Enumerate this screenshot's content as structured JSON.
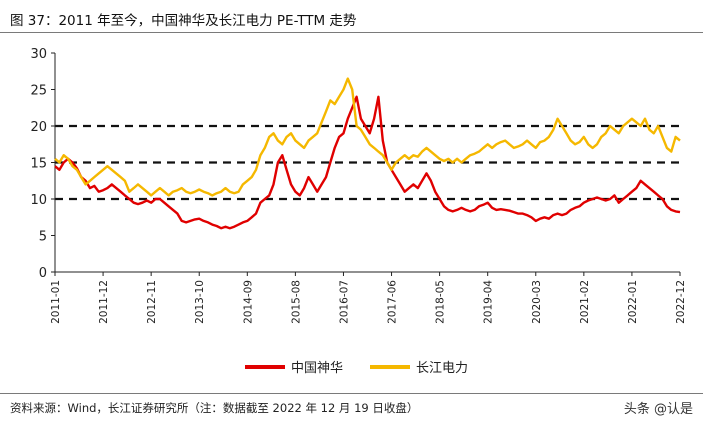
{
  "header": {
    "title": "图 37：2011 年至今，中国神华及长江电力 PE-TTM 走势"
  },
  "footer": {
    "source": "资料来源：Wind，长江证券研究所（注：数据截至 2022 年 12 月 19 日收盘）",
    "watermark": "头条 @认是"
  },
  "chart_data": {
    "type": "line",
    "title": "",
    "xlabel": "",
    "ylabel": "",
    "ylim": [
      0,
      30
    ],
    "yticks": [
      0,
      5,
      10,
      15,
      20,
      25,
      30
    ],
    "x_tick_labels": [
      "2011-01",
      "2011-12",
      "2012-11",
      "2013-10",
      "2014-09",
      "2015-08",
      "2016-07",
      "2017-06",
      "2018-05",
      "2019-04",
      "2020-03",
      "2021-02",
      "2022-01",
      "2022-12"
    ],
    "reference_lines": [
      10,
      15,
      20
    ],
    "legend_position": "bottom",
    "colors": {
      "中国神华": "#e00000",
      "长江电力": "#f5b800"
    },
    "series": [
      {
        "name": "中国神华",
        "points": [
          [
            "2011-01",
            14.5
          ],
          [
            "2011-02",
            14.0
          ],
          [
            "2011-03",
            15.0
          ],
          [
            "2011-04",
            15.5
          ],
          [
            "2011-05",
            15.0
          ],
          [
            "2011-06",
            14.2
          ],
          [
            "2011-07",
            13.0
          ],
          [
            "2011-08",
            12.5
          ],
          [
            "2011-09",
            11.5
          ],
          [
            "2011-10",
            11.8
          ],
          [
            "2011-11",
            11.0
          ],
          [
            "2011-12",
            11.2
          ],
          [
            "2012-01",
            11.5
          ],
          [
            "2012-02",
            12.0
          ],
          [
            "2012-03",
            11.5
          ],
          [
            "2012-04",
            11.0
          ],
          [
            "2012-05",
            10.5
          ],
          [
            "2012-06",
            10.0
          ],
          [
            "2012-07",
            9.5
          ],
          [
            "2012-08",
            9.3
          ],
          [
            "2012-09",
            9.5
          ],
          [
            "2012-10",
            9.8
          ],
          [
            "2012-11",
            9.5
          ],
          [
            "2012-12",
            10.0
          ],
          [
            "2013-01",
            10.0
          ],
          [
            "2013-02",
            9.5
          ],
          [
            "2013-03",
            9.0
          ],
          [
            "2013-04",
            8.5
          ],
          [
            "2013-05",
            8.0
          ],
          [
            "2013-06",
            7.0
          ],
          [
            "2013-07",
            6.8
          ],
          [
            "2013-08",
            7.0
          ],
          [
            "2013-09",
            7.2
          ],
          [
            "2013-10",
            7.3
          ],
          [
            "2013-11",
            7.0
          ],
          [
            "2013-12",
            6.8
          ],
          [
            "2014-01",
            6.5
          ],
          [
            "2014-02",
            6.3
          ],
          [
            "2014-03",
            6.0
          ],
          [
            "2014-04",
            6.2
          ],
          [
            "2014-05",
            6.0
          ],
          [
            "2014-06",
            6.2
          ],
          [
            "2014-07",
            6.5
          ],
          [
            "2014-08",
            6.8
          ],
          [
            "2014-09",
            7.0
          ],
          [
            "2014-10",
            7.5
          ],
          [
            "2014-11",
            8.0
          ],
          [
            "2014-12",
            9.5
          ],
          [
            "2015-01",
            10.0
          ],
          [
            "2015-02",
            10.5
          ],
          [
            "2015-03",
            12.0
          ],
          [
            "2015-04",
            15.0
          ],
          [
            "2015-05",
            16.0
          ],
          [
            "2015-06",
            14.0
          ],
          [
            "2015-07",
            12.0
          ],
          [
            "2015-08",
            11.0
          ],
          [
            "2015-09",
            10.5
          ],
          [
            "2015-10",
            11.5
          ],
          [
            "2015-11",
            13.0
          ],
          [
            "2015-12",
            12.0
          ],
          [
            "2016-01",
            11.0
          ],
          [
            "2016-02",
            12.0
          ],
          [
            "2016-03",
            13.0
          ],
          [
            "2016-04",
            15.0
          ],
          [
            "2016-05",
            17.0
          ],
          [
            "2016-06",
            18.5
          ],
          [
            "2016-07",
            19.0
          ],
          [
            "2016-08",
            21.0
          ],
          [
            "2016-09",
            22.5
          ],
          [
            "2016-10",
            24.0
          ],
          [
            "2016-11",
            21.0
          ],
          [
            "2016-12",
            20.0
          ],
          [
            "2017-01",
            19.0
          ],
          [
            "2017-02",
            21.0
          ],
          [
            "2017-03",
            24.0
          ],
          [
            "2017-04",
            18.0
          ],
          [
            "2017-05",
            15.0
          ],
          [
            "2017-06",
            14.0
          ],
          [
            "2017-07",
            13.0
          ],
          [
            "2017-08",
            12.0
          ],
          [
            "2017-09",
            11.0
          ],
          [
            "2017-10",
            11.5
          ],
          [
            "2017-11",
            12.0
          ],
          [
            "2017-12",
            11.5
          ],
          [
            "2018-01",
            12.5
          ],
          [
            "2018-02",
            13.5
          ],
          [
            "2018-03",
            12.5
          ],
          [
            "2018-04",
            11.0
          ],
          [
            "2018-05",
            10.0
          ],
          [
            "2018-06",
            9.0
          ],
          [
            "2018-07",
            8.5
          ],
          [
            "2018-08",
            8.3
          ],
          [
            "2018-09",
            8.5
          ],
          [
            "2018-10",
            8.8
          ],
          [
            "2018-11",
            8.5
          ],
          [
            "2018-12",
            8.3
          ],
          [
            "2019-01",
            8.5
          ],
          [
            "2019-02",
            9.0
          ],
          [
            "2019-03",
            9.2
          ],
          [
            "2019-04",
            9.5
          ],
          [
            "2019-05",
            8.8
          ],
          [
            "2019-06",
            8.5
          ],
          [
            "2019-07",
            8.6
          ],
          [
            "2019-08",
            8.5
          ],
          [
            "2019-09",
            8.4
          ],
          [
            "2019-10",
            8.2
          ],
          [
            "2019-11",
            8.0
          ],
          [
            "2019-12",
            8.0
          ],
          [
            "2020-01",
            7.8
          ],
          [
            "2020-02",
            7.5
          ],
          [
            "2020-03",
            7.0
          ],
          [
            "2020-04",
            7.3
          ],
          [
            "2020-05",
            7.5
          ],
          [
            "2020-06",
            7.3
          ],
          [
            "2020-07",
            7.8
          ],
          [
            "2020-08",
            8.0
          ],
          [
            "2020-09",
            7.8
          ],
          [
            "2020-10",
            8.0
          ],
          [
            "2020-11",
            8.5
          ],
          [
            "2020-12",
            8.8
          ],
          [
            "2021-01",
            9.0
          ],
          [
            "2021-02",
            9.5
          ],
          [
            "2021-03",
            9.8
          ],
          [
            "2021-04",
            10.0
          ],
          [
            "2021-05",
            10.2
          ],
          [
            "2021-06",
            10.0
          ],
          [
            "2021-07",
            9.8
          ],
          [
            "2021-08",
            10.0
          ],
          [
            "2021-09",
            10.5
          ],
          [
            "2021-10",
            9.5
          ],
          [
            "2021-11",
            10.0
          ],
          [
            "2021-12",
            10.5
          ],
          [
            "2022-01",
            11.0
          ],
          [
            "2022-02",
            11.5
          ],
          [
            "2022-03",
            12.5
          ],
          [
            "2022-04",
            12.0
          ],
          [
            "2022-05",
            11.5
          ],
          [
            "2022-06",
            11.0
          ],
          [
            "2022-07",
            10.5
          ],
          [
            "2022-08",
            10.0
          ],
          [
            "2022-09",
            9.0
          ],
          [
            "2022-10",
            8.5
          ],
          [
            "2022-11",
            8.3
          ],
          [
            "2022-12",
            8.2
          ]
        ]
      },
      {
        "name": "长江电力",
        "points": [
          [
            "2011-01",
            15.5
          ],
          [
            "2011-02",
            15.0
          ],
          [
            "2011-03",
            16.0
          ],
          [
            "2011-04",
            15.5
          ],
          [
            "2011-05",
            14.5
          ],
          [
            "2011-06",
            14.0
          ],
          [
            "2011-07",
            13.0
          ],
          [
            "2011-08",
            12.0
          ],
          [
            "2011-09",
            12.5
          ],
          [
            "2011-10",
            13.0
          ],
          [
            "2011-11",
            13.5
          ],
          [
            "2011-12",
            14.0
          ],
          [
            "2012-01",
            14.5
          ],
          [
            "2012-02",
            14.0
          ],
          [
            "2012-03",
            13.5
          ],
          [
            "2012-04",
            13.0
          ],
          [
            "2012-05",
            12.5
          ],
          [
            "2012-06",
            11.0
          ],
          [
            "2012-07",
            11.5
          ],
          [
            "2012-08",
            12.0
          ],
          [
            "2012-09",
            11.5
          ],
          [
            "2012-10",
            11.0
          ],
          [
            "2012-11",
            10.5
          ],
          [
            "2012-12",
            11.0
          ],
          [
            "2013-01",
            11.5
          ],
          [
            "2013-02",
            11.0
          ],
          [
            "2013-03",
            10.5
          ],
          [
            "2013-04",
            11.0
          ],
          [
            "2013-05",
            11.2
          ],
          [
            "2013-06",
            11.5
          ],
          [
            "2013-07",
            11.0
          ],
          [
            "2013-08",
            10.8
          ],
          [
            "2013-09",
            11.0
          ],
          [
            "2013-10",
            11.3
          ],
          [
            "2013-11",
            11.0
          ],
          [
            "2013-12",
            10.8
          ],
          [
            "2014-01",
            10.5
          ],
          [
            "2014-02",
            10.8
          ],
          [
            "2014-03",
            11.0
          ],
          [
            "2014-04",
            11.5
          ],
          [
            "2014-05",
            11.0
          ],
          [
            "2014-06",
            10.8
          ],
          [
            "2014-07",
            11.0
          ],
          [
            "2014-08",
            12.0
          ],
          [
            "2014-09",
            12.5
          ],
          [
            "2014-10",
            13.0
          ],
          [
            "2014-11",
            14.0
          ],
          [
            "2014-12",
            16.0
          ],
          [
            "2015-01",
            17.0
          ],
          [
            "2015-02",
            18.5
          ],
          [
            "2015-03",
            19.0
          ],
          [
            "2015-04",
            18.0
          ],
          [
            "2015-05",
            17.5
          ],
          [
            "2015-06",
            18.5
          ],
          [
            "2015-07",
            19.0
          ],
          [
            "2015-08",
            18.0
          ],
          [
            "2015-09",
            17.5
          ],
          [
            "2015-10",
            17.0
          ],
          [
            "2015-11",
            18.0
          ],
          [
            "2015-12",
            18.5
          ],
          [
            "2016-01",
            19.0
          ],
          [
            "2016-02",
            20.5
          ],
          [
            "2016-03",
            22.0
          ],
          [
            "2016-04",
            23.5
          ],
          [
            "2016-05",
            23.0
          ],
          [
            "2016-06",
            24.0
          ],
          [
            "2016-07",
            25.0
          ],
          [
            "2016-08",
            26.5
          ],
          [
            "2016-09",
            25.0
          ],
          [
            "2016-10",
            20.0
          ],
          [
            "2016-11",
            19.5
          ],
          [
            "2016-12",
            18.5
          ],
          [
            "2017-01",
            17.5
          ],
          [
            "2017-02",
            17.0
          ],
          [
            "2017-03",
            16.5
          ],
          [
            "2017-04",
            16.0
          ],
          [
            "2017-05",
            15.0
          ],
          [
            "2017-06",
            14.0
          ],
          [
            "2017-07",
            15.0
          ],
          [
            "2017-08",
            15.5
          ],
          [
            "2017-09",
            16.0
          ],
          [
            "2017-10",
            15.5
          ],
          [
            "2017-11",
            16.0
          ],
          [
            "2017-12",
            15.8
          ],
          [
            "2018-01",
            16.5
          ],
          [
            "2018-02",
            17.0
          ],
          [
            "2018-03",
            16.5
          ],
          [
            "2018-04",
            16.0
          ],
          [
            "2018-05",
            15.5
          ],
          [
            "2018-06",
            15.2
          ],
          [
            "2018-07",
            15.5
          ],
          [
            "2018-08",
            15.0
          ],
          [
            "2018-09",
            15.5
          ],
          [
            "2018-10",
            15.0
          ],
          [
            "2018-11",
            15.5
          ],
          [
            "2018-12",
            16.0
          ],
          [
            "2019-01",
            16.2
          ],
          [
            "2019-02",
            16.5
          ],
          [
            "2019-03",
            17.0
          ],
          [
            "2019-04",
            17.5
          ],
          [
            "2019-05",
            17.0
          ],
          [
            "2019-06",
            17.5
          ],
          [
            "2019-07",
            17.8
          ],
          [
            "2019-08",
            18.0
          ],
          [
            "2019-09",
            17.5
          ],
          [
            "2019-10",
            17.0
          ],
          [
            "2019-11",
            17.2
          ],
          [
            "2019-12",
            17.5
          ],
          [
            "2020-01",
            18.0
          ],
          [
            "2020-02",
            17.5
          ],
          [
            "2020-03",
            17.0
          ],
          [
            "2020-04",
            17.8
          ],
          [
            "2020-05",
            18.0
          ],
          [
            "2020-06",
            18.5
          ],
          [
            "2020-07",
            19.5
          ],
          [
            "2020-08",
            21.0
          ],
          [
            "2020-09",
            20.0
          ],
          [
            "2020-10",
            19.0
          ],
          [
            "2020-11",
            18.0
          ],
          [
            "2020-12",
            17.5
          ],
          [
            "2021-01",
            17.8
          ],
          [
            "2021-02",
            18.5
          ],
          [
            "2021-03",
            17.5
          ],
          [
            "2021-04",
            17.0
          ],
          [
            "2021-05",
            17.5
          ],
          [
            "2021-06",
            18.5
          ],
          [
            "2021-07",
            19.0
          ],
          [
            "2021-08",
            20.0
          ],
          [
            "2021-09",
            19.5
          ],
          [
            "2021-10",
            19.0
          ],
          [
            "2021-11",
            20.0
          ],
          [
            "2021-12",
            20.5
          ],
          [
            "2022-01",
            21.0
          ],
          [
            "2022-02",
            20.5
          ],
          [
            "2022-03",
            20.0
          ],
          [
            "2022-04",
            21.0
          ],
          [
            "2022-05",
            19.5
          ],
          [
            "2022-06",
            19.0
          ],
          [
            "2022-07",
            20.0
          ],
          [
            "2022-08",
            18.5
          ],
          [
            "2022-09",
            17.0
          ],
          [
            "2022-10",
            16.5
          ],
          [
            "2022-11",
            18.5
          ],
          [
            "2022-12",
            18.0
          ]
        ]
      }
    ]
  }
}
